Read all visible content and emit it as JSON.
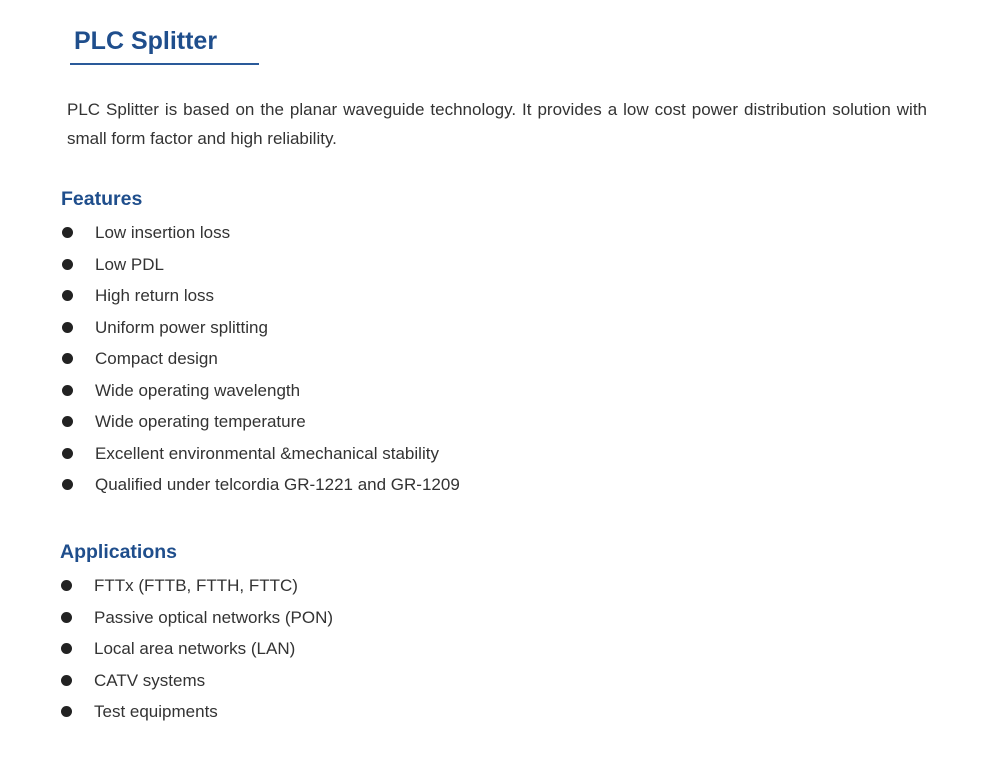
{
  "title": "PLC Splitter",
  "intro": "PLC Splitter is based on the planar waveguide technology. It provides a low cost power distribution solution with small form factor and high reliability.",
  "features": {
    "heading": "Features",
    "items": [
      "Low insertion loss",
      "Low PDL",
      "High return loss",
      "Uniform power splitting",
      "Compact design",
      "Wide operating wavelength",
      "Wide operating temperature",
      "Excellent environmental &mechanical stability",
      "Qualified under telcordia GR-1221 and GR-1209"
    ]
  },
  "applications": {
    "heading": "Applications",
    "items": [
      "FTTx (FTTB, FTTH, FTTC)",
      "Passive optical networks (PON)",
      "Local area networks (LAN)",
      "CATV systems",
      "Test equipments"
    ]
  },
  "colors": {
    "heading": "#1f4e8c",
    "text": "#333333"
  }
}
